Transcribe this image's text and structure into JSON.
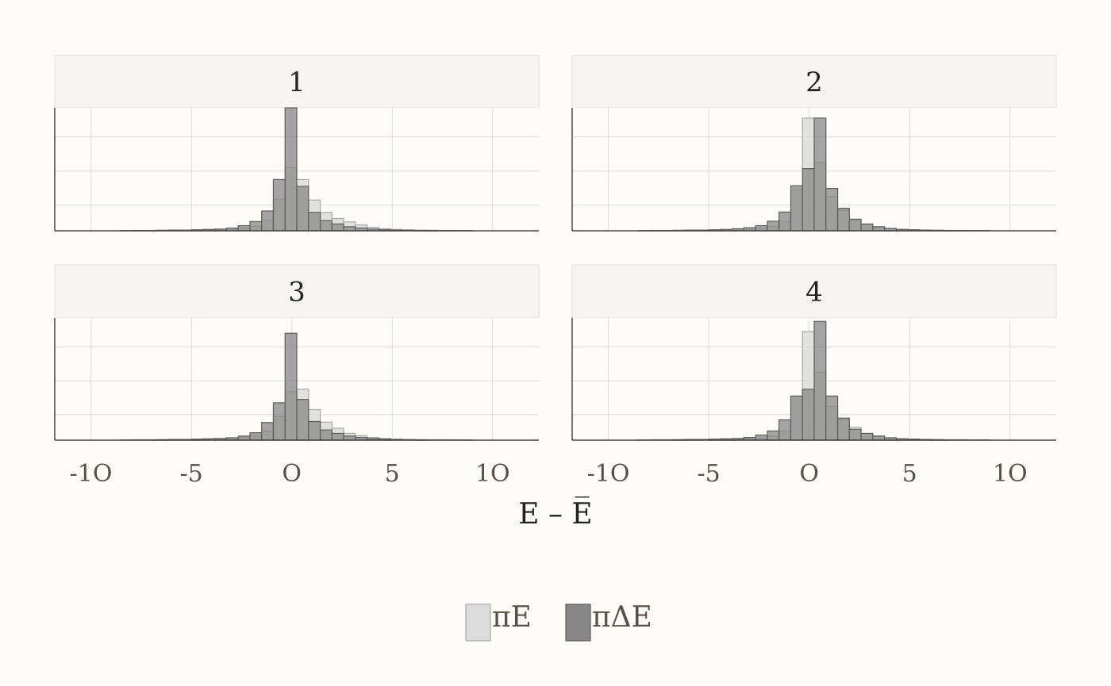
{
  "chart_data": {
    "type": "bar",
    "subtype": "faceted-overlaid-histogram",
    "xlabel": "E – E̅",
    "ylabel": "",
    "xlim": [
      -11.8,
      12.3
    ],
    "x_ticks": [
      -10,
      -5,
      0,
      5,
      10
    ],
    "x_tick_labels": [
      "-1O",
      "-5",
      "O",
      "5",
      "1O"
    ],
    "y_grid_values": [
      0.175,
      0.275,
      0.375
    ],
    "y_tick_labels": [],
    "ylim": [
      0,
      0.36
    ],
    "grid": true,
    "legend_position": "bottom",
    "bin_edges": [
      -8.5,
      -7.917,
      -7.333,
      -6.75,
      -6.167,
      -5.583,
      -5.0,
      -4.417,
      -3.833,
      -3.25,
      -2.667,
      -2.083,
      -1.5,
      -0.917,
      -0.333,
      0.25,
      0.833,
      1.417,
      2.0,
      2.583,
      3.167,
      3.75,
      4.333,
      4.917,
      5.5,
      6.083,
      6.667,
      7.25,
      7.833,
      8.417,
      9.0
    ],
    "series_names": [
      "πE",
      "πΔE"
    ],
    "series_colors": [
      "#dcdcdc",
      "#878787"
    ],
    "facets": [
      {
        "label": "1",
        "series": [
          {
            "name": "πE",
            "values": [
              0.0005,
              0.0005,
              0.001,
              0.001,
              0.0015,
              0.0015,
              0.002,
              0.002,
              0.003,
              0.004,
              0.007,
              0.013,
              0.03,
              0.092,
              0.185,
              0.15,
              0.09,
              0.054,
              0.036,
              0.026,
              0.017,
              0.01,
              0.006,
              0.004,
              0.003,
              0.002,
              0.0015,
              0.001,
              0.001,
              0.0005
            ]
          },
          {
            "name": "πΔE",
            "values": [
              0.0005,
              0.001,
              0.001,
              0.0015,
              0.002,
              0.002,
              0.003,
              0.004,
              0.005,
              0.008,
              0.015,
              0.027,
              0.058,
              0.15,
              0.36,
              0.13,
              0.054,
              0.03,
              0.02,
              0.012,
              0.008,
              0.005,
              0.003,
              0.002,
              0.0015,
              0.001,
              0.001,
              0.0005,
              0.0005,
              0.0005
            ]
          }
        ]
      },
      {
        "label": "2",
        "series": [
          {
            "name": "πE",
            "values": [
              0.0005,
              0.0005,
              0.001,
              0.001,
              0.0015,
              0.0015,
              0.002,
              0.002,
              0.003,
              0.004,
              0.007,
              0.013,
              0.028,
              0.12,
              0.33,
              0.2,
              0.1,
              0.06,
              0.03,
              0.018,
              0.01,
              0.007,
              0.004,
              0.003,
              0.002,
              0.0015,
              0.001,
              0.001,
              0.001,
              0.0005
            ]
          },
          {
            "name": "πΔE",
            "values": [
              0.0005,
              0.001,
              0.001,
              0.0015,
              0.002,
              0.002,
              0.003,
              0.004,
              0.006,
              0.009,
              0.015,
              0.028,
              0.055,
              0.132,
              0.182,
              0.33,
              0.124,
              0.066,
              0.034,
              0.02,
              0.012,
              0.007,
              0.004,
              0.003,
              0.002,
              0.0015,
              0.001,
              0.001,
              0.0005,
              0.0005
            ]
          }
        ]
      },
      {
        "label": "3",
        "series": [
          {
            "name": "πE",
            "values": [
              0.0005,
              0.0005,
              0.001,
              0.001,
              0.0015,
              0.002,
              0.002,
              0.003,
              0.004,
              0.005,
              0.008,
              0.013,
              0.026,
              0.07,
              0.143,
              0.15,
              0.09,
              0.053,
              0.035,
              0.02,
              0.013,
              0.008,
              0.005,
              0.003,
              0.002,
              0.0015,
              0.001,
              0.001,
              0.0005,
              0.0005
            ]
          },
          {
            "name": "πΔE",
            "values": [
              0.0005,
              0.001,
              0.001,
              0.0015,
              0.002,
              0.002,
              0.003,
              0.004,
              0.005,
              0.007,
              0.012,
              0.022,
              0.052,
              0.11,
              0.315,
              0.12,
              0.055,
              0.03,
              0.02,
              0.012,
              0.008,
              0.005,
              0.003,
              0.002,
              0.0015,
              0.001,
              0.001,
              0.0005,
              0.0005,
              0.0005
            ]
          }
        ]
      },
      {
        "label": "4",
        "series": [
          {
            "name": "πE",
            "values": [
              0.0005,
              0.0005,
              0.001,
              0.001,
              0.0015,
              0.0015,
              0.002,
              0.002,
              0.003,
              0.004,
              0.006,
              0.012,
              0.027,
              0.13,
              0.32,
              0.2,
              0.1,
              0.06,
              0.038,
              0.02,
              0.012,
              0.007,
              0.004,
              0.003,
              0.002,
              0.0015,
              0.001,
              0.001,
              0.0005,
              0.0005
            ]
          },
          {
            "name": "πΔE",
            "values": [
              0.0005,
              0.001,
              0.001,
              0.0015,
              0.002,
              0.002,
              0.003,
              0.004,
              0.005,
              0.008,
              0.015,
              0.027,
              0.06,
              0.13,
              0.15,
              0.35,
              0.13,
              0.065,
              0.032,
              0.02,
              0.012,
              0.007,
              0.004,
              0.003,
              0.002,
              0.0015,
              0.001,
              0.001,
              0.0005,
              0.0005
            ]
          }
        ]
      }
    ]
  }
}
